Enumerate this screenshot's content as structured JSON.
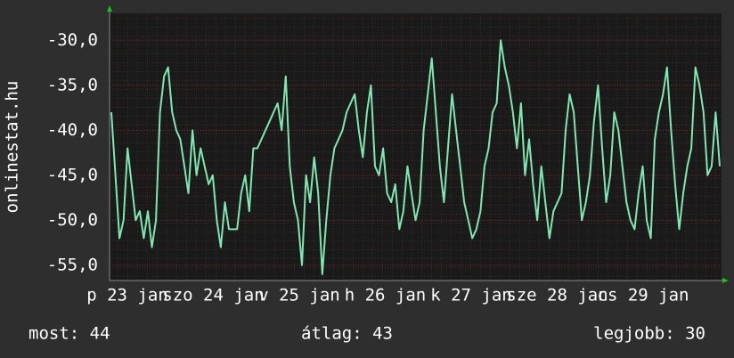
{
  "chart_data": {
    "type": "line",
    "y_label": "onlinestat.hu",
    "x_labels": [
      "p 23 jan",
      "szo 24 jan",
      "v 25 jan",
      "h 26 jan",
      "k 27 jan",
      "sze 28 jan",
      "cs 29 jan"
    ],
    "ylim": [
      -56.7,
      -27
    ],
    "yticks": [
      {
        "value": -30,
        "label": "-30,0"
      },
      {
        "value": -35,
        "label": "-35,0"
      },
      {
        "value": -40,
        "label": "-40,0"
      },
      {
        "value": -45,
        "label": "-45,0"
      },
      {
        "value": -50,
        "label": "-50,0"
      },
      {
        "value": -55,
        "label": "-55,0"
      }
    ],
    "grid": true,
    "color": "#7ee8b0",
    "values": [
      -38,
      -45,
      -52,
      -50,
      -42,
      -46,
      -50,
      -49,
      -52,
      -49,
      -53,
      -50,
      -38,
      -34,
      -33,
      -38,
      -40,
      -41,
      -44,
      -47,
      -40,
      -45,
      -42,
      -44,
      -46,
      -45,
      -50,
      -53,
      -48,
      -51,
      -51,
      -51,
      -47,
      -45,
      -49,
      -42,
      -42,
      -41,
      -40,
      -39,
      -38,
      -37,
      -40,
      -34,
      -44,
      -48,
      -50,
      -55,
      -45,
      -48,
      -43,
      -47,
      -56,
      -50,
      -45,
      -42,
      -41,
      -40,
      -38,
      -37,
      -36,
      -40,
      -43,
      -38,
      -35,
      -44,
      -45,
      -42,
      -47,
      -48,
      -46,
      -51,
      -49,
      -44,
      -47,
      -50,
      -48,
      -40,
      -36,
      -32,
      -38,
      -44,
      -48,
      -42,
      -36,
      -40,
      -44,
      -48,
      -50,
      -52,
      -51,
      -49,
      -44,
      -42,
      -38,
      -37,
      -30,
      -33,
      -35,
      -38,
      -42,
      -37,
      -45,
      -41,
      -46,
      -50,
      -44,
      -48,
      -52,
      -49,
      -48,
      -47,
      -40,
      -36,
      -38,
      -44,
      -50,
      -48,
      -45,
      -39,
      -35,
      -42,
      -48,
      -45,
      -38,
      -40,
      -44,
      -48,
      -50,
      -51,
      -47,
      -44,
      -50,
      -52,
      -41,
      -38,
      -36,
      -33,
      -40,
      -46,
      -51,
      -47,
      -44,
      -42,
      -33,
      -35,
      -38,
      -45,
      -44,
      -38,
      -44
    ]
  },
  "footer": {
    "current": "most: 44",
    "average": "átlag: 43",
    "best": "legjobb: 30"
  }
}
